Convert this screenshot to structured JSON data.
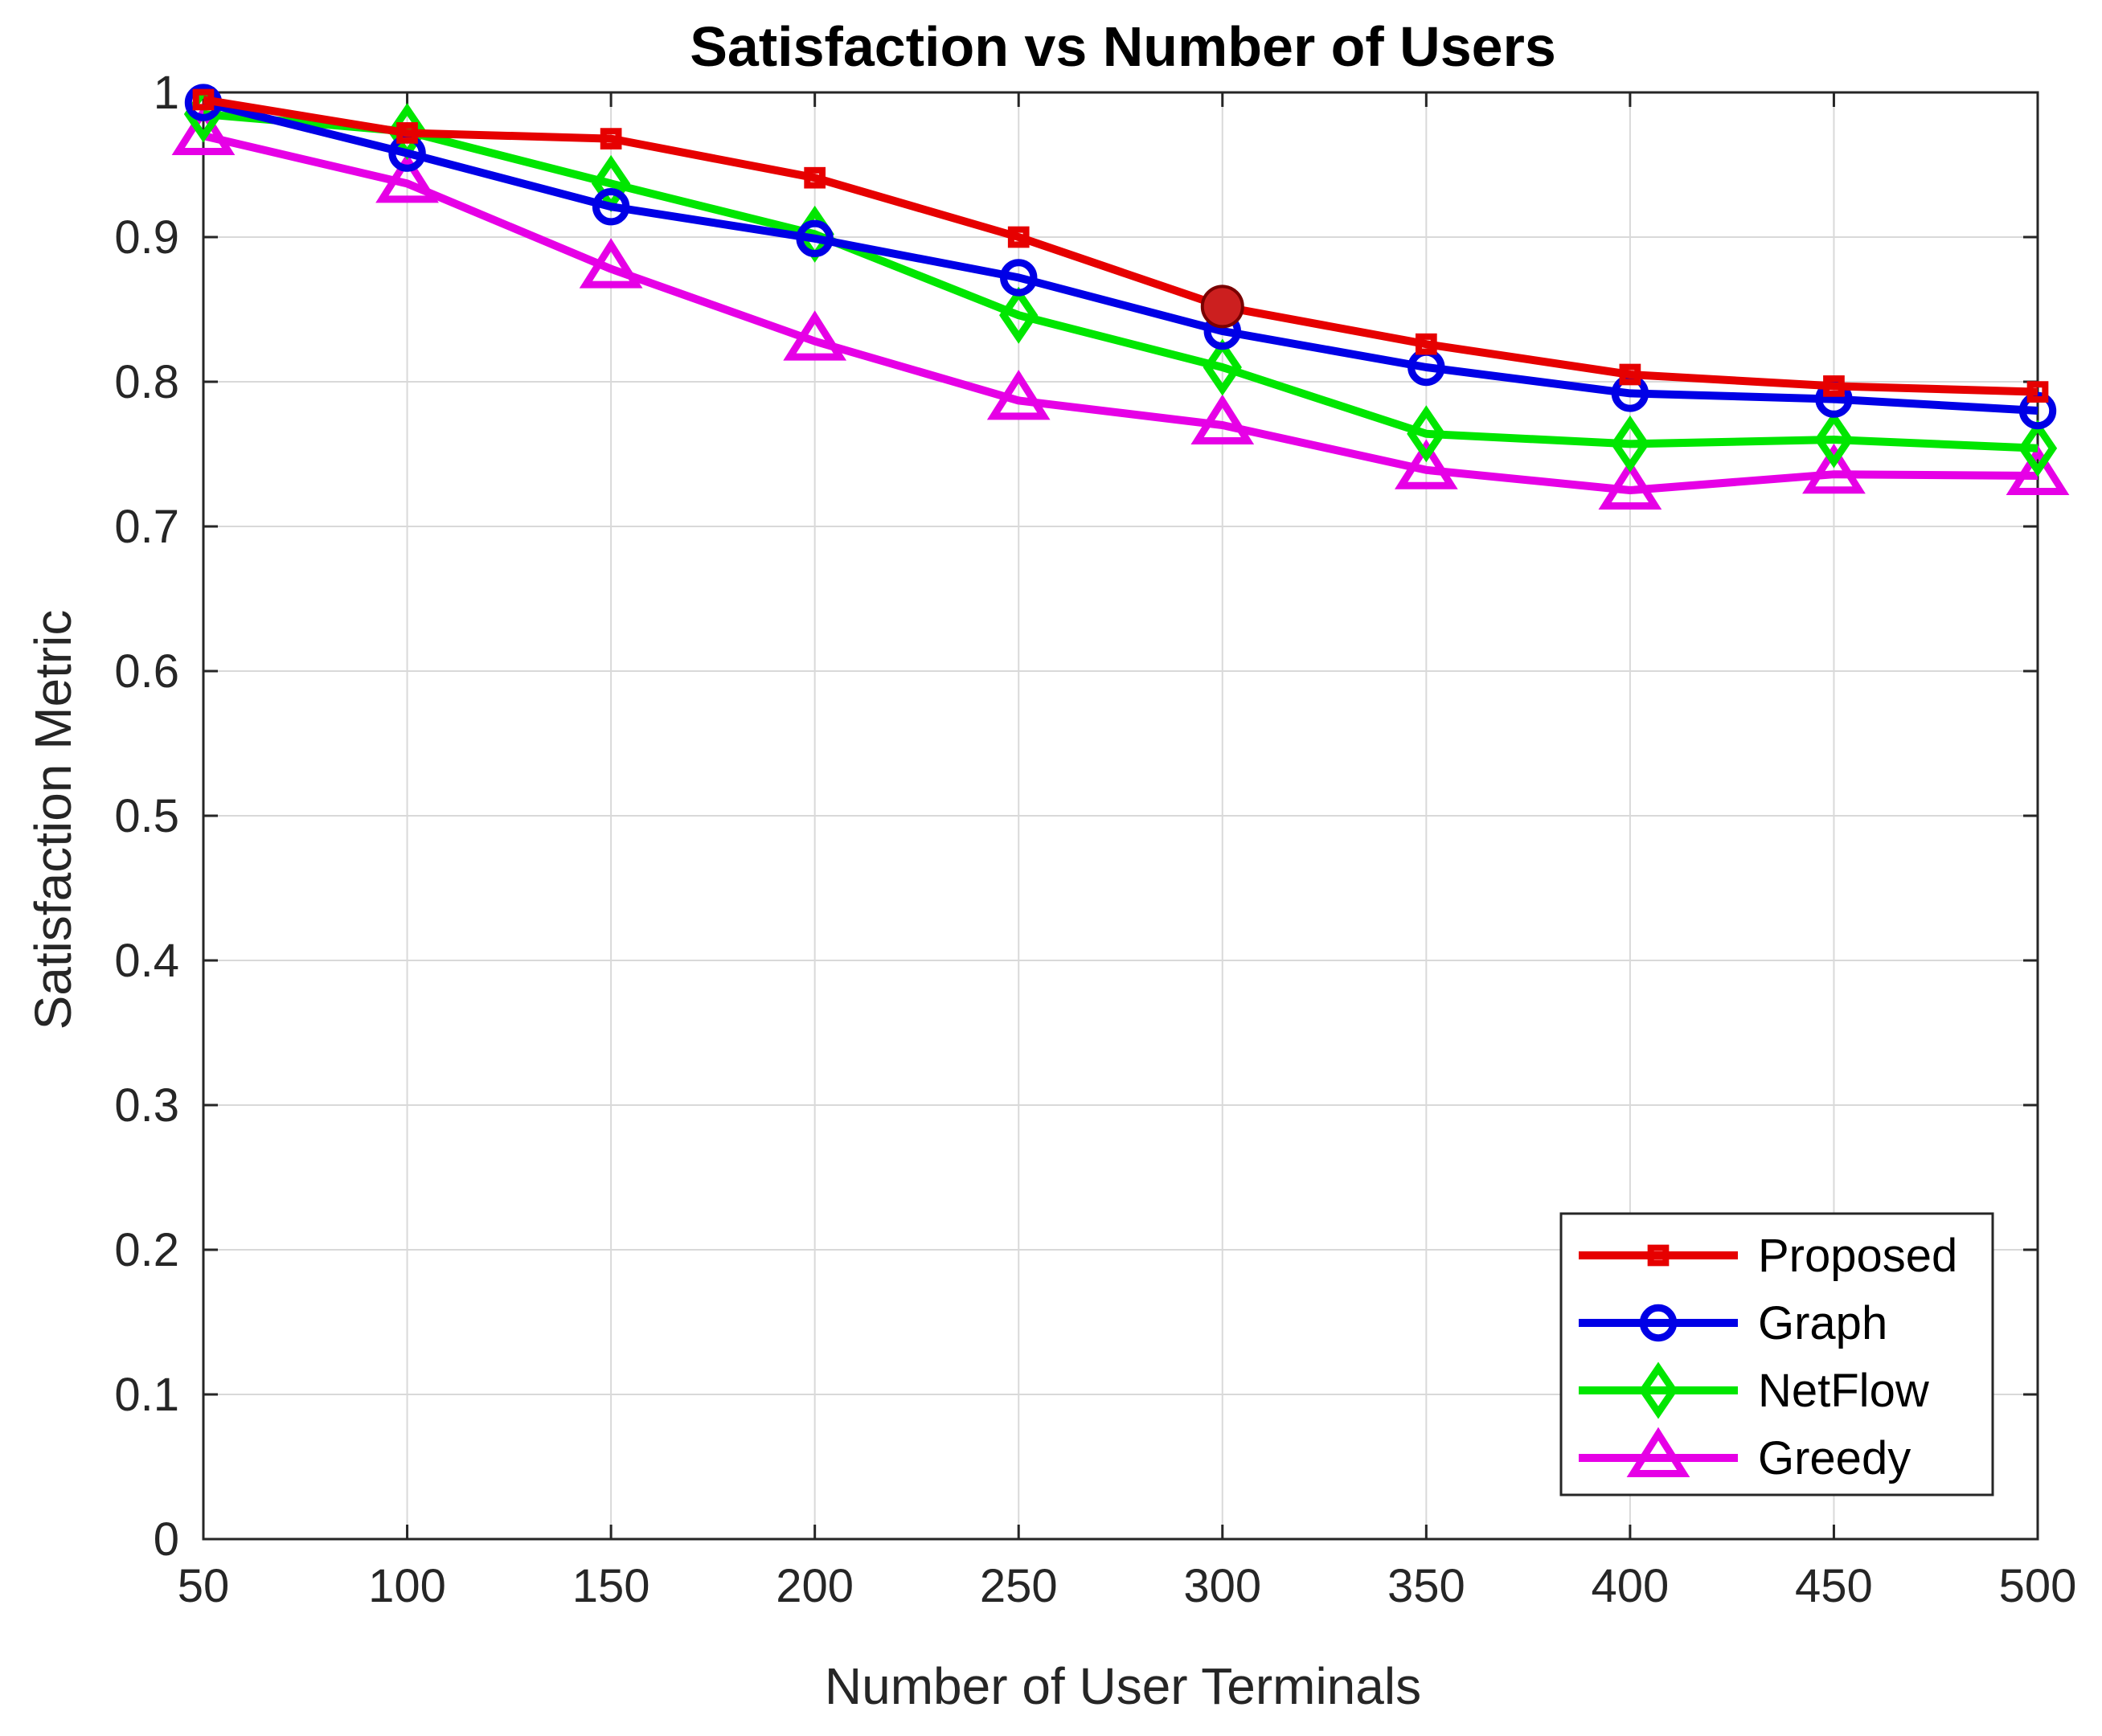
{
  "chart_data": {
    "type": "line",
    "title": "Satisfaction vs Number of Users",
    "xlabel": "Number of User Terminals",
    "ylabel": "Satisfaction Metric",
    "x": [
      50,
      100,
      150,
      200,
      250,
      300,
      350,
      400,
      450,
      500
    ],
    "xlim": [
      50,
      500
    ],
    "ylim": [
      0,
      1
    ],
    "xticks": [
      "50",
      "100",
      "150",
      "200",
      "250",
      "300",
      "350",
      "400",
      "450",
      "500"
    ],
    "yticks": [
      "0",
      "0.1",
      "0.2",
      "0.3",
      "0.4",
      "0.5",
      "0.6",
      "0.7",
      "0.8",
      "0.9",
      "1"
    ],
    "grid": true,
    "legend_position": "bottom-right",
    "series": [
      {
        "name": "Proposed",
        "color": "#e60000",
        "marker": "square",
        "values": [
          0.995,
          0.972,
          0.968,
          0.941,
          0.9,
          0.852,
          0.826,
          0.805,
          0.797,
          0.793
        ]
      },
      {
        "name": "Graph",
        "color": "#0000e6",
        "marker": "circle",
        "values": [
          0.993,
          0.958,
          0.921,
          0.899,
          0.872,
          0.835,
          0.81,
          0.792,
          0.788,
          0.78
        ]
      },
      {
        "name": "NetFlow",
        "color": "#00e600",
        "marker": "diamond",
        "values": [
          0.985,
          0.973,
          0.937,
          0.902,
          0.846,
          0.81,
          0.764,
          0.757,
          0.76,
          0.754
        ]
      },
      {
        "name": "Greedy",
        "color": "#e600e6",
        "marker": "triangle",
        "values": [
          0.97,
          0.937,
          0.878,
          0.828,
          0.787,
          0.77,
          0.739,
          0.725,
          0.736,
          0.735
        ]
      }
    ],
    "highlight_point": {
      "x": 300,
      "y": 0.852,
      "color": "#cc1f1f"
    }
  }
}
